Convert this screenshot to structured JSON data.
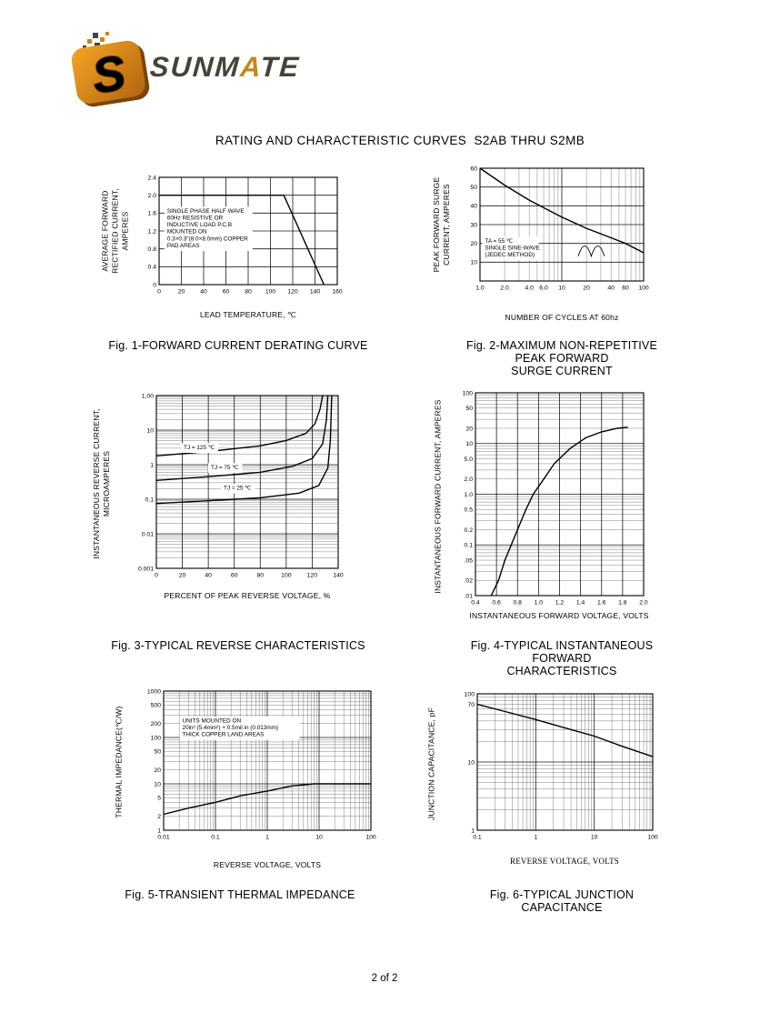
{
  "page": {
    "title": "RATING AND CHARACTERISTIC CURVES  S2AB THRU S2MB",
    "footer": "2 of 2"
  },
  "logo": {
    "part1": "SUNM",
    "part2": "A",
    "part3": "TE"
  },
  "figures": [
    {
      "caption": "Fig. 1-FORWARD CURRENT DERATING CURVE",
      "xlabel": "LEAD TEMPERATURE, ℃",
      "ylabel": "AVERAGE FORWARD\nRECTIFIED CURRENT,\nAMPERES"
    },
    {
      "caption": "Fig. 2-MAXIMUM NON-REPETITIVE PEAK FORWARD\nSURGE CURRENT",
      "xlabel": "NUMBER OF CYCLES AT 60hz",
      "ylabel": "PEAK FORWARD SURGE\nCURRENT, AMPERES"
    },
    {
      "caption": "Fig. 3-TYPICAL REVERSE CHARACTERISTICS",
      "xlabel": "PERCENT OF PEAK REVERSE VOLTAGE, %",
      "ylabel": "INSTANTANEOUS REVERSE CURRENT,\nMICROAMPERES"
    },
    {
      "caption": "Fig. 4-TYPICAL INSTANTANEOUS FORWARD\nCHARACTERISTICS",
      "xlabel": "INSTANTANEOUS FORWARD VOLTAGE, VOLTS",
      "ylabel": "INSTANTANEOUS FORWARD CURRENT, AMPERES"
    },
    {
      "caption": "Fig. 5-TRANSIENT THERMAL IMPEDANCE",
      "xlabel": "REVERSE VOLTAGE, VOLTS",
      "ylabel": "THERMAL IMPEDANCE(℃/W)"
    },
    {
      "caption": "Fig. 6-TYPICAL JUNCTION CAPACITANCE",
      "xlabel": "REVERSE VOLTAGE, VOLTS",
      "ylabel": "JUNCTION CAPACITANCE, pF"
    }
  ],
  "chart_data": [
    {
      "type": "line",
      "title": "Fig. 1-FORWARD CURRENT DERATING CURVE",
      "xlabel": "LEAD TEMPERATURE, ℃",
      "ylabel": "AVERAGE FORWARD RECTIFIED CURRENT, AMPERES",
      "x": {
        "type": "linear",
        "min": 0,
        "max": 160,
        "grid": 20
      },
      "y": {
        "type": "linear",
        "min": 0,
        "max": 2.4,
        "grid": 0.4
      },
      "x_ticks": [
        {
          "v": 0,
          "t": "0"
        },
        {
          "v": 20,
          "t": "20"
        },
        {
          "v": 40,
          "t": "40"
        },
        {
          "v": 60,
          "t": "60"
        },
        {
          "v": 80,
          "t": "80"
        },
        {
          "v": 100,
          "t": "100"
        },
        {
          "v": 120,
          "t": "120"
        },
        {
          "v": 140,
          "t": "140"
        },
        {
          "v": 160,
          "t": "160"
        }
      ],
      "y_ticks": [
        {
          "v": 2.4,
          "t": "2.4"
        },
        {
          "v": 2.0,
          "t": "2.0"
        },
        {
          "v": 1.6,
          "t": "1.6"
        },
        {
          "v": 1.2,
          "t": "1.2"
        },
        {
          "v": 0.8,
          "t": "0.8"
        },
        {
          "v": 0.4,
          "t": "0.4"
        },
        {
          "v": 0,
          "t": "0"
        }
      ],
      "series": [
        {
          "name": "derating-curve",
          "points": [
            [
              0,
              2.0
            ],
            [
              112,
              2.0
            ],
            [
              148,
              0
            ]
          ]
        }
      ],
      "notes": [
        {
          "fx": 0.045,
          "fy": 0.33,
          "bg": true,
          "lines": [
            "SINGLE PHASE HALF WAVE",
            "60Hz RESISTIVE OR",
            "INDUCTIVE LOAD P.C.B",
            "MOUNTED ON",
            "0.3×0.3\"(8.0×8.0mm) COPPER",
            "PAD AREAS"
          ]
        }
      ]
    },
    {
      "type": "line",
      "title": "Fig. 2-MAXIMUM NON-REPETITIVE PEAK FORWARD SURGE CURRENT",
      "xlabel": "NUMBER OF CYCLES AT 60hz",
      "ylabel": "PEAK FORWARD SURGE CURRENT, AMPERES",
      "x": {
        "type": "log",
        "min": 1,
        "max": 100
      },
      "y": {
        "type": "linear",
        "min": 0,
        "max": 60,
        "grid": 10
      },
      "x_ticks": [
        {
          "v": 1,
          "t": "1.0"
        },
        {
          "v": 2,
          "t": "2.0"
        },
        {
          "v": 4,
          "t": "4.0"
        },
        {
          "v": 6,
          "t": "6.0"
        },
        {
          "v": 10,
          "t": "10"
        },
        {
          "v": 20,
          "t": "20"
        },
        {
          "v": 40,
          "t": "40"
        },
        {
          "v": 60,
          "t": "60"
        },
        {
          "v": 100,
          "t": "100"
        }
      ],
      "y_ticks": [
        {
          "v": 60,
          "t": "60"
        },
        {
          "v": 50,
          "t": "50"
        },
        {
          "v": 40,
          "t": "40"
        },
        {
          "v": 30,
          "t": "30"
        },
        {
          "v": 20,
          "t": "20"
        },
        {
          "v": 10,
          "t": "10"
        }
      ],
      "series": [
        {
          "name": "surge-current",
          "points": [
            [
              1,
              60
            ],
            [
              2,
              51
            ],
            [
              4,
              43
            ],
            [
              6,
              39
            ],
            [
              10,
              34
            ],
            [
              20,
              28
            ],
            [
              40,
              23
            ],
            [
              60,
              20
            ],
            [
              100,
              15
            ]
          ]
        }
      ],
      "notes": [
        {
          "fx": 0.03,
          "fy": 0.66,
          "bg": true,
          "lines": [
            "TA = 55 ℃",
            "SINGLE SINE-WAVE",
            "(JEDEC METHOD)"
          ]
        }
      ],
      "icons": [
        {
          "type": "sine",
          "fx": 0.6,
          "fy": 0.78,
          "fw": 0.16,
          "fh": 0.09
        }
      ]
    },
    {
      "type": "line",
      "title": "Fig. 3-TYPICAL REVERSE CHARACTERISTICS",
      "xlabel": "PERCENT OF PEAK REVERSE VOLTAGE, %",
      "ylabel": "INSTANTANEOUS REVERSE CURRENT, MICROAMPERES",
      "x": {
        "type": "linear",
        "min": 0,
        "max": 140,
        "grid": 20
      },
      "y": {
        "type": "log",
        "min": 0.001,
        "max": 100
      },
      "x_ticks": [
        {
          "v": 0,
          "t": "0"
        },
        {
          "v": 20,
          "t": "20"
        },
        {
          "v": 40,
          "t": "40"
        },
        {
          "v": 60,
          "t": "60"
        },
        {
          "v": 80,
          "t": "80"
        },
        {
          "v": 100,
          "t": "100"
        },
        {
          "v": 120,
          "t": "120"
        },
        {
          "v": 140,
          "t": "140"
        }
      ],
      "y_ticks": [
        {
          "v": 100,
          "t": "1,00"
        },
        {
          "v": 10,
          "t": "10"
        },
        {
          "v": 1,
          "t": "1"
        },
        {
          "v": 0.1,
          "t": "0.1"
        },
        {
          "v": 0.01,
          "t": "0.01"
        },
        {
          "v": 0.001,
          "t": "0.001"
        }
      ],
      "series": [
        {
          "name": "tj-125",
          "points": [
            [
              0,
              1.8
            ],
            [
              40,
              2.4
            ],
            [
              80,
              3.5
            ],
            [
              100,
              5
            ],
            [
              115,
              8
            ],
            [
              122,
              15
            ],
            [
              126,
              40
            ],
            [
              128,
              100
            ]
          ]
        },
        {
          "name": "tj-75",
          "points": [
            [
              0,
              0.35
            ],
            [
              40,
              0.45
            ],
            [
              80,
              0.6
            ],
            [
              105,
              0.9
            ],
            [
              120,
              1.5
            ],
            [
              128,
              4
            ],
            [
              131,
              20
            ],
            [
              132,
              100
            ]
          ]
        },
        {
          "name": "tj-25",
          "points": [
            [
              0,
              0.075
            ],
            [
              40,
              0.09
            ],
            [
              80,
              0.11
            ],
            [
              110,
              0.15
            ],
            [
              125,
              0.25
            ],
            [
              132,
              0.8
            ],
            [
              134,
              5
            ],
            [
              135,
              100
            ]
          ]
        }
      ],
      "notes": [
        {
          "fx": 0.15,
          "fy": 0.31,
          "bg": true,
          "lines": [
            "TJ = 125 ℃"
          ]
        },
        {
          "fx": 0.3,
          "fy": 0.425,
          "bg": true,
          "lines": [
            "TJ = 75 ℃"
          ]
        },
        {
          "fx": 0.37,
          "fy": 0.545,
          "bg": true,
          "lines": [
            "TJ = 25 ℃"
          ]
        }
      ]
    },
    {
      "type": "line",
      "title": "Fig. 4-TYPICAL INSTANTANEOUS FORWARD CHARACTERISTICS",
      "xlabel": "INSTANTANEOUS FORWARD VOLTAGE, VOLTS",
      "ylabel": "INSTANTANEOUS FORWARD CURRENT, AMPERES",
      "x": {
        "type": "linear",
        "min": 0.4,
        "max": 2.0,
        "grid": 0.2
      },
      "y": {
        "type": "log",
        "min": 0.01,
        "max": 100
      },
      "x_ticks": [
        {
          "v": 0.4,
          "t": "0.4"
        },
        {
          "v": 0.6,
          "t": "0.6"
        },
        {
          "v": 0.8,
          "t": "0.8"
        },
        {
          "v": 1.0,
          "t": "1.0"
        },
        {
          "v": 1.2,
          "t": "1.2"
        },
        {
          "v": 1.4,
          "t": "1.4"
        },
        {
          "v": 1.6,
          "t": "1.6"
        },
        {
          "v": 1.8,
          "t": "1.8"
        },
        {
          "v": 2.0,
          "t": "2.0"
        }
      ],
      "y_ticks": [
        {
          "v": 100,
          "t": "100"
        },
        {
          "v": 50,
          "t": "50"
        },
        {
          "v": 20,
          "t": "20"
        },
        {
          "v": 10,
          "t": "10"
        },
        {
          "v": 5,
          "t": "5.0"
        },
        {
          "v": 2,
          "t": "2.0"
        },
        {
          "v": 1,
          "t": "1.0"
        },
        {
          "v": 0.5,
          "t": "0.5"
        },
        {
          "v": 0.2,
          "t": "0.2"
        },
        {
          "v": 0.1,
          "t": "0.1"
        },
        {
          "v": 0.05,
          "t": ".05"
        },
        {
          "v": 0.02,
          "t": ".02"
        },
        {
          "v": 0.01,
          "t": ".01"
        }
      ],
      "series": [
        {
          "name": "forward-current",
          "points": [
            [
              0.55,
              0.01
            ],
            [
              0.62,
              0.02
            ],
            [
              0.68,
              0.05
            ],
            [
              0.74,
              0.1
            ],
            [
              0.8,
              0.2
            ],
            [
              0.88,
              0.5
            ],
            [
              0.95,
              1.0
            ],
            [
              1.05,
              2.0
            ],
            [
              1.15,
              4
            ],
            [
              1.3,
              8
            ],
            [
              1.45,
              13
            ],
            [
              1.6,
              17
            ],
            [
              1.75,
              20
            ],
            [
              1.85,
              21
            ]
          ]
        }
      ]
    },
    {
      "type": "line",
      "title": "Fig. 5-TRANSIENT THERMAL IMPEDANCE",
      "xlabel": "REVERSE VOLTAGE, VOLTS",
      "ylabel": "THERMAL IMPEDANCE(℃/W)",
      "x": {
        "type": "log",
        "min": 0.01,
        "max": 100
      },
      "y": {
        "type": "log",
        "min": 1,
        "max": 1000
      },
      "x_ticks": [
        {
          "v": 0.01,
          "t": "0.01"
        },
        {
          "v": 0.1,
          "t": "0.1"
        },
        {
          "v": 1,
          "t": "1"
        },
        {
          "v": 10,
          "t": "10"
        },
        {
          "v": 100,
          "t": "100"
        }
      ],
      "y_ticks": [
        {
          "v": 1000,
          "t": "1000"
        },
        {
          "v": 500,
          "t": "500"
        },
        {
          "v": 200,
          "t": "200"
        },
        {
          "v": 100,
          "t": "100"
        },
        {
          "v": 50,
          "t": "50"
        },
        {
          "v": 20,
          "t": "20"
        },
        {
          "v": 10,
          "t": "10"
        },
        {
          "v": 5,
          "t": "5"
        },
        {
          "v": 2,
          "t": "2"
        },
        {
          "v": 1,
          "t": "1"
        }
      ],
      "series": [
        {
          "name": "thermal-impedance",
          "points": [
            [
              0.01,
              2.2
            ],
            [
              0.03,
              3
            ],
            [
              0.1,
              4
            ],
            [
              0.3,
              5.5
            ],
            [
              1,
              7
            ],
            [
              3,
              9
            ],
            [
              8,
              10
            ],
            [
              100,
              10
            ]
          ]
        }
      ],
      "notes": [
        {
          "fx": 0.09,
          "fy": 0.225,
          "bg": true,
          "lines": [
            "UNITS MOUNTED ON",
            "20in² (5.4mm²) + 0.5mil in (0.013mm)",
            "THICK COPPER LAND AREAS"
          ]
        }
      ]
    },
    {
      "type": "line",
      "title": "Fig. 6-TYPICAL JUNCTION CAPACITANCE",
      "xlabel": "REVERSE VOLTAGE, VOLTS",
      "ylabel": "JUNCTION CAPACITANCE, pF",
      "x": {
        "type": "log",
        "min": 0.1,
        "max": 100
      },
      "y": {
        "type": "log",
        "min": 1,
        "max": 100
      },
      "x_ticks": [
        {
          "v": 0.1,
          "t": "0.1"
        },
        {
          "v": 1,
          "t": "1"
        },
        {
          "v": 10,
          "t": "10"
        },
        {
          "v": 100,
          "t": "100"
        }
      ],
      "y_ticks": [
        {
          "v": 100,
          "t": "100"
        },
        {
          "v": 70,
          "t": "70"
        },
        {
          "v": 10,
          "t": "10"
        },
        {
          "v": 1,
          "t": "1"
        }
      ],
      "series": [
        {
          "name": "junction-capacitance",
          "points": [
            [
              0.1,
              70
            ],
            [
              0.3,
              55
            ],
            [
              1,
              42
            ],
            [
              3,
              32
            ],
            [
              10,
              24
            ],
            [
              30,
              17
            ],
            [
              100,
              12
            ]
          ]
        }
      ]
    }
  ]
}
